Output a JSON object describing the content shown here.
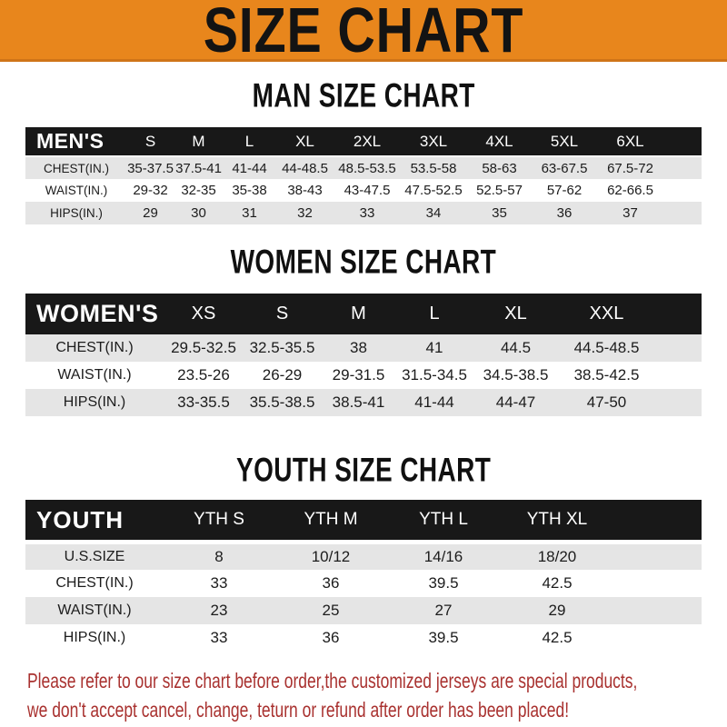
{
  "title": "SIZE CHART",
  "colors": {
    "banner_bg": "#E8861C",
    "band_bg": "#181818",
    "alt_row_bg": "#E5E5E5",
    "footer_text": "#A93230"
  },
  "sections": {
    "men": {
      "heading": "MAN SIZE CHART",
      "header": {
        "label": "MEN'S",
        "columns": [
          "S",
          "M",
          "L",
          "XL",
          "2XL",
          "3XL",
          "4XL",
          "5XL",
          "6XL"
        ]
      },
      "rows": [
        {
          "label": "CHEST(IN.)",
          "values": [
            "35-37.5",
            "37.5-41",
            "41-44",
            "44-48.5",
            "48.5-53.5",
            "53.5-58",
            "58-63",
            "63-67.5",
            "67.5-72"
          ]
        },
        {
          "label": "WAIST(IN.)",
          "values": [
            "29-32",
            "32-35",
            "35-38",
            "38-43",
            "43-47.5",
            "47.5-52.5",
            "52.5-57",
            "57-62",
            "62-66.5"
          ]
        },
        {
          "label": "HIPS(IN.)",
          "values": [
            "29",
            "30",
            "31",
            "32",
            "33",
            "34",
            "35",
            "36",
            "37"
          ]
        }
      ]
    },
    "women": {
      "heading": "WOMEN SIZE CHART",
      "header": {
        "label": "WOMEN'S",
        "columns": [
          "XS",
          "S",
          "M",
          "L",
          "XL",
          "XXL"
        ]
      },
      "rows": [
        {
          "label": "CHEST(IN.)",
          "values": [
            "29.5-32.5",
            "32.5-35.5",
            "38",
            "41",
            "44.5",
            "44.5-48.5"
          ]
        },
        {
          "label": "WAIST(IN.)",
          "values": [
            "23.5-26",
            "26-29",
            "29-31.5",
            "31.5-34.5",
            "34.5-38.5",
            "38.5-42.5"
          ]
        },
        {
          "label": "HIPS(IN.)",
          "values": [
            "33-35.5",
            "35.5-38.5",
            "38.5-41",
            "41-44",
            "44-47",
            "47-50"
          ]
        }
      ]
    },
    "youth": {
      "heading": "YOUTH SIZE CHART",
      "header": {
        "label": "YOUTH",
        "columns": [
          "YTH S",
          "YTH M",
          "YTH L",
          "YTH XL"
        ]
      },
      "rows": [
        {
          "label": "U.S.SIZE",
          "values": [
            "8",
            "10/12",
            "14/16",
            "18/20"
          ]
        },
        {
          "label": "CHEST(IN.)",
          "values": [
            "33",
            "36",
            "39.5",
            "42.5"
          ]
        },
        {
          "label": "WAIST(IN.)",
          "values": [
            "23",
            "25",
            "27",
            "29"
          ]
        },
        {
          "label": "HIPS(IN.)",
          "values": [
            "33",
            "36",
            "39.5",
            "42.5"
          ]
        }
      ]
    }
  },
  "footer": {
    "line1": "Please refer to our size chart before order,the customized jerseys are special products,",
    "line2": "we don't accept cancel, change, teturn or refund after order has been placed!"
  }
}
